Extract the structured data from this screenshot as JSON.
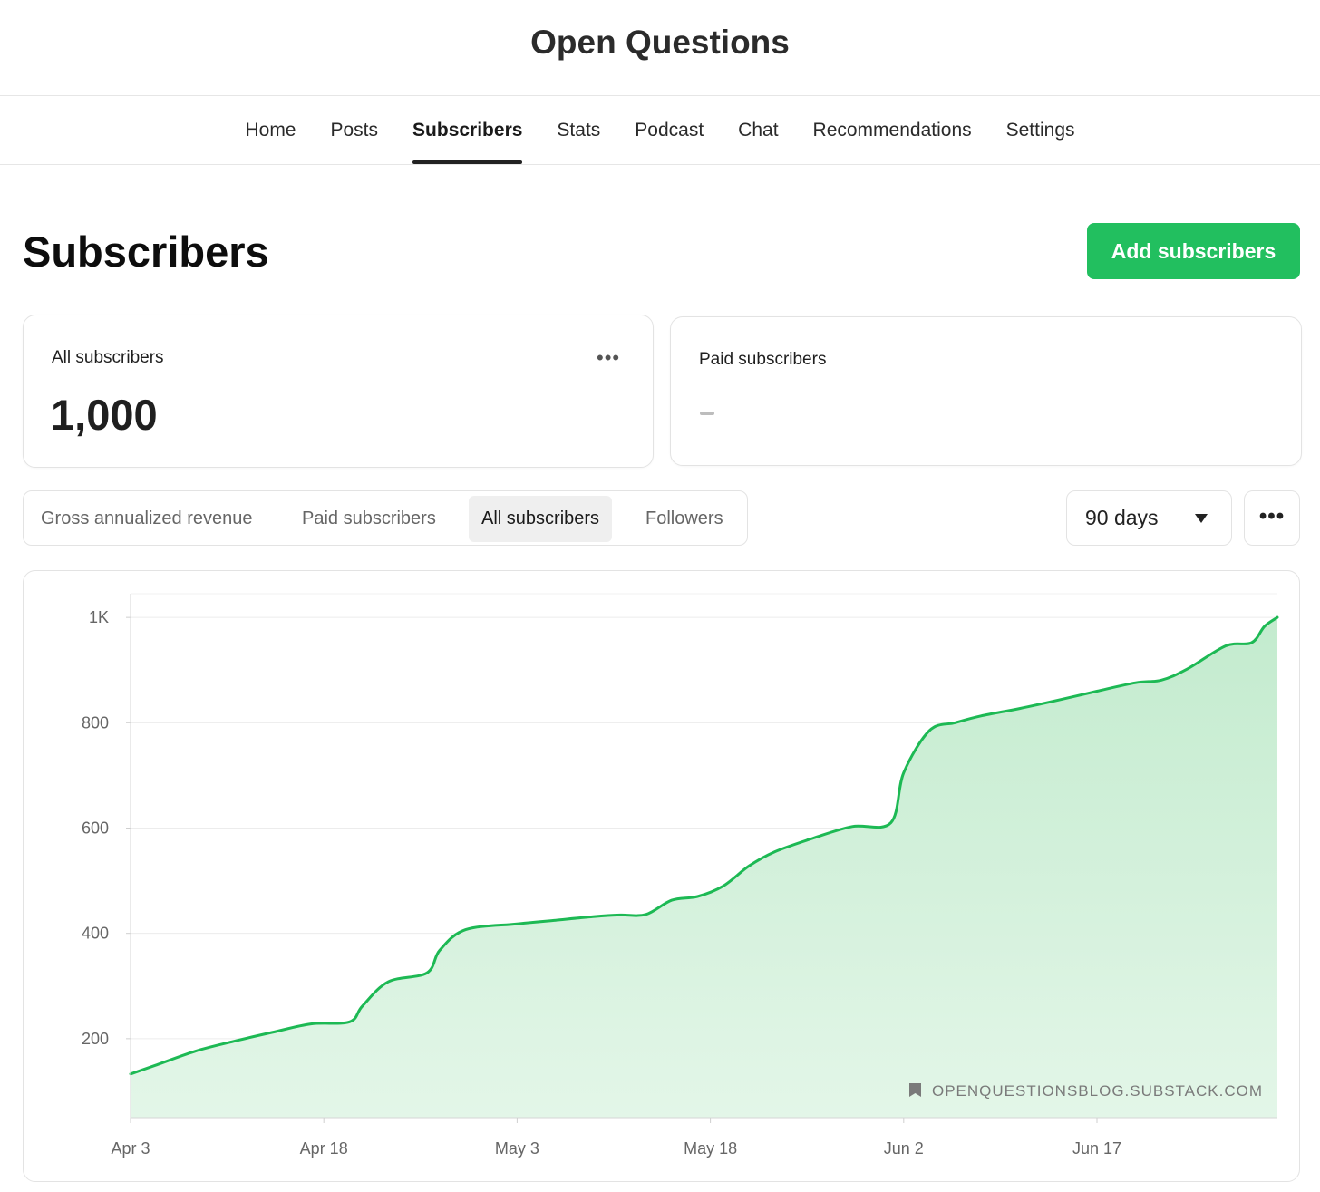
{
  "header": {
    "title": "Open Questions"
  },
  "nav": {
    "tabs": [
      {
        "label": "Home"
      },
      {
        "label": "Posts"
      },
      {
        "label": "Subscribers"
      },
      {
        "label": "Stats"
      },
      {
        "label": "Podcast"
      },
      {
        "label": "Chat"
      },
      {
        "label": "Recommendations"
      },
      {
        "label": "Settings"
      }
    ],
    "active": "Subscribers"
  },
  "page": {
    "title": "Subscribers",
    "add_button": "Add subscribers"
  },
  "cards": {
    "all": {
      "label": "All subscribers",
      "value": "1,000",
      "menu": "•••"
    },
    "paid": {
      "label": "Paid subscribers"
    }
  },
  "filters": {
    "metrics": [
      "Gross annualized revenue",
      "Paid subscribers",
      "All subscribers",
      "Followers"
    ],
    "active": "All subscribers",
    "range": "90 days",
    "more": "•••"
  },
  "watermark": {
    "text": "OPENQUESTIONSBLOG.SUBSTACK.COM"
  },
  "colors": {
    "accent": "#22bf5f",
    "line": "#1db954",
    "fill": "#c9edd4"
  },
  "chart_data": {
    "type": "area",
    "title": "",
    "xlabel": "",
    "ylabel": "",
    "series": [
      {
        "x": [
          "Apr 3",
          "Apr 5",
          "Apr 8",
          "Apr 11",
          "Apr 14",
          "Apr 17",
          "Apr 20",
          "Apr 21",
          "Apr 23",
          "Apr 26",
          "Apr 27",
          "Apr 29",
          "May 3",
          "May 6",
          "May 9",
          "May 11",
          "May 13",
          "May 15",
          "May 17",
          "May 19",
          "May 21",
          "May 23",
          "May 26",
          "May 29",
          "Jun 1",
          "Jun 2",
          "Jun 4",
          "Jun 6",
          "Jun 8",
          "Jun 11",
          "Jun 14",
          "Jun 17",
          "Jun 20",
          "Jun 22",
          "Jun 24",
          "Jun 27",
          "Jun 29",
          "Jun 30",
          "Jul 1"
        ],
        "values": [
          133,
          150,
          176,
          195,
          212,
          228,
          232,
          262,
          308,
          325,
          368,
          407,
          418,
          425,
          432,
          435,
          436,
          463,
          470,
          490,
          528,
          555,
          581,
          603,
          610,
          705,
          785,
          800,
          813,
          827,
          843,
          860,
          876,
          881,
          902,
          946,
          952,
          983,
          1000
        ]
      }
    ],
    "yticks": [
      {
        "value": 200,
        "label": "200"
      },
      {
        "value": 400,
        "label": "400"
      },
      {
        "value": 600,
        "label": "600"
      },
      {
        "value": 800,
        "label": "800"
      },
      {
        "value": 1000,
        "label": "1K"
      }
    ],
    "xticks": [
      "Apr 3",
      "Apr 18",
      "May 3",
      "May 18",
      "Jun 2",
      "Jun 17"
    ],
    "ylim": [
      50,
      1045
    ],
    "xlim": [
      "Apr 3",
      "Jul 1"
    ],
    "grid": true,
    "legend": "none"
  }
}
